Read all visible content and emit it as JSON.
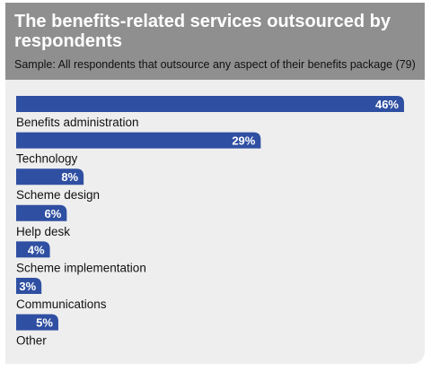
{
  "header": {
    "title": "The benefits-related services outsourced by respondents",
    "sample": "Sample: All respondents that outsource any aspect of their benefits package (79)"
  },
  "colors": {
    "bar": "#2f4fa2",
    "header_bg": "#8f8f8f",
    "panel_bg": "#eeeeee"
  },
  "chart_data": {
    "type": "bar",
    "orientation": "horizontal",
    "title": "The benefits-related services outsourced by respondents",
    "subtitle": "Sample: All respondents that outsource any aspect of their benefits package (79)",
    "categories": [
      "Benefits administration",
      "Technology",
      "Scheme design",
      "Help desk",
      "Scheme implementation",
      "Communications",
      "Other"
    ],
    "values": [
      46,
      29,
      8,
      6,
      4,
      3,
      5
    ],
    "value_labels": [
      "46%",
      "29%",
      "8%",
      "6%",
      "4%",
      "3%",
      "5%"
    ],
    "unit": "%",
    "xlim": [
      0,
      46
    ],
    "grid": false,
    "legend": "none"
  }
}
